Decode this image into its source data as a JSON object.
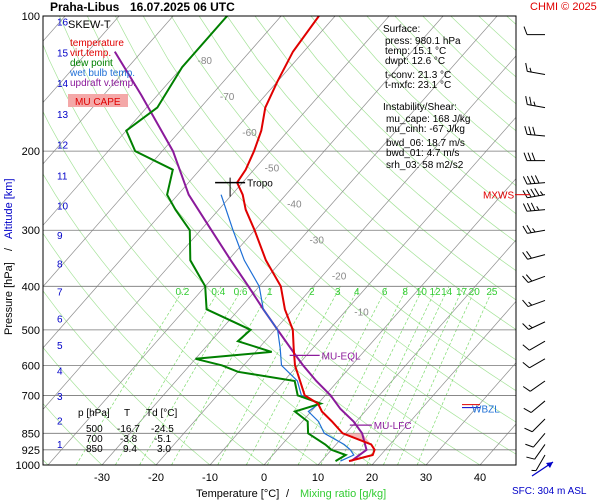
{
  "header": {
    "station": "Praha-Libus",
    "datetime": "16.07.2025 06 UTC",
    "credit": "CHMI © 2025"
  },
  "axes": {
    "xlabel_temp": "Temperature [°C]",
    "xlabel_sep": "/",
    "xlabel_mix": "Mixing ratio [g/kg]",
    "ylabel_pressure": "Pressure [hPa]",
    "ylabel_sep": "/",
    "ylabel_altitude": "Altitude [km]",
    "sfc_label": "SFC: 304 m ASL"
  },
  "legend": {
    "title": "SKEW-T",
    "items": [
      {
        "label": "temperature",
        "color": "#e00000"
      },
      {
        "label": "virt.temp.",
        "color": "#e00000"
      },
      {
        "label": "dew point",
        "color": "#008000"
      },
      {
        "label": "wet bulb temp.",
        "color": "#1e6fd6"
      },
      {
        "label": "updraft v.temp.",
        "color": "#8b1a9b"
      }
    ],
    "mu_cape_label": "MU CAPE"
  },
  "surface": {
    "title": "Surface:",
    "lines": [
      {
        "text": "press: 980.1 hPa",
        "color": "#000000"
      },
      {
        "text": "temp: 15.1 °C",
        "color": "#e00000"
      },
      {
        "text": "dwpt: 12.6 °C",
        "color": "#008000"
      },
      {
        "text": "t-conv: 21.3 °C",
        "color": "#000000"
      },
      {
        "text": "t-mxfc: 23.1 °C",
        "color": "#000000"
      }
    ]
  },
  "instability": {
    "title": "Instability/Shear:",
    "lines": [
      "mu_cape: 168 J/kg",
      "mu_cinh: -67 J/kg",
      "bwd_06: 18.7 m/s",
      "bwd_01: 4.7 m/s",
      "srh_03: 58 m2/s2"
    ]
  },
  "table": {
    "headers": [
      "p [hPa]",
      "T",
      "Td [°C]"
    ],
    "rows": [
      [
        "500",
        "-16.7",
        "-24.5"
      ],
      [
        "700",
        "-3.8",
        "-5.1"
      ],
      [
        "850",
        "9.4",
        "3.0"
      ]
    ]
  },
  "markers": {
    "tropo": "Tropo",
    "mxws": "MXWS",
    "mu_eql": "MU-EQL",
    "mu_lfc": "MU-LFC",
    "wbzl": "WBZL"
  },
  "colors": {
    "temperature": "#e00000",
    "dewpoint": "#008000",
    "wetbulb": "#1e6fd6",
    "parcel": "#8b1a9b",
    "mixing": "#7fdc6f",
    "isotherm": "#b4b4b4",
    "altitude": "#0000c8",
    "cape_fill": "#f4a8a8"
  },
  "chart_data": {
    "type": "skew-t",
    "x_ticks": [
      -30,
      -20,
      -10,
      0,
      10,
      20,
      30,
      40
    ],
    "pressure_ticks": [
      100,
      200,
      300,
      400,
      500,
      600,
      700,
      850,
      925,
      1000
    ],
    "altitude_ticks": [
      1,
      2,
      3,
      4,
      5,
      6,
      7,
      8,
      9,
      10,
      11,
      12,
      13,
      14,
      15,
      16
    ],
    "isotherm_labels": [
      -80,
      -70,
      -60,
      -50,
      -40,
      -30,
      -20,
      -10
    ],
    "mixing_ratio_labels": [
      "0.2",
      "0.4",
      "0.6",
      "1",
      "2",
      "3",
      "4",
      "6",
      "8",
      "10",
      "12",
      "14",
      "17",
      "20",
      "25"
    ],
    "temperature": [
      {
        "p": 980,
        "t": 15.1
      },
      {
        "p": 950,
        "t": 18.5
      },
      {
        "p": 925,
        "t": 18.0
      },
      {
        "p": 900,
        "t": 16.5
      },
      {
        "p": 850,
        "t": 9.4
      },
      {
        "p": 800,
        "t": 5.5
      },
      {
        "p": 760,
        "t": 2.0
      },
      {
        "p": 730,
        "t": 0.0
      },
      {
        "p": 700,
        "t": -3.8
      },
      {
        "p": 650,
        "t": -7.0
      },
      {
        "p": 600,
        "t": -10.5
      },
      {
        "p": 550,
        "t": -13.5
      },
      {
        "p": 500,
        "t": -16.7
      },
      {
        "p": 450,
        "t": -21.5
      },
      {
        "p": 400,
        "t": -26.0
      },
      {
        "p": 350,
        "t": -33.0
      },
      {
        "p": 300,
        "t": -40.0
      },
      {
        "p": 270,
        "t": -45.0
      },
      {
        "p": 250,
        "t": -48.0
      },
      {
        "p": 235,
        "t": -51.0
      },
      {
        "p": 220,
        "t": -51.5
      },
      {
        "p": 200,
        "t": -53.0
      },
      {
        "p": 180,
        "t": -55.0
      },
      {
        "p": 160,
        "t": -58.0
      },
      {
        "p": 140,
        "t": -60.0
      },
      {
        "p": 120,
        "t": -62.0
      },
      {
        "p": 100,
        "t": -63.0
      }
    ],
    "dewpoint": [
      {
        "p": 980,
        "t": 12.6
      },
      {
        "p": 950,
        "t": 13.5
      },
      {
        "p": 925,
        "t": 10.0
      },
      {
        "p": 900,
        "t": 8.0
      },
      {
        "p": 850,
        "t": 3.0
      },
      {
        "p": 800,
        "t": 1.0
      },
      {
        "p": 760,
        "t": -3.0
      },
      {
        "p": 730,
        "t": 0.5
      },
      {
        "p": 700,
        "t": -5.1
      },
      {
        "p": 650,
        "t": -8.0
      },
      {
        "p": 620,
        "t": -20.0
      },
      {
        "p": 600,
        "t": -24.0
      },
      {
        "p": 580,
        "t": -30.0
      },
      {
        "p": 560,
        "t": -17.0
      },
      {
        "p": 530,
        "t": -25.0
      },
      {
        "p": 500,
        "t": -24.5
      },
      {
        "p": 450,
        "t": -36.0
      },
      {
        "p": 400,
        "t": -40.0
      },
      {
        "p": 350,
        "t": -47.0
      },
      {
        "p": 300,
        "t": -52.0
      },
      {
        "p": 270,
        "t": -58.0
      },
      {
        "p": 250,
        "t": -62.0
      },
      {
        "p": 220,
        "t": -65.0
      },
      {
        "p": 200,
        "t": -75.0
      },
      {
        "p": 180,
        "t": -80.0
      },
      {
        "p": 160,
        "t": -78.0
      },
      {
        "p": 130,
        "t": -80.0
      },
      {
        "p": 100,
        "t": -80.0
      }
    ],
    "wetbulb": [
      {
        "p": 980,
        "t": 13.5
      },
      {
        "p": 950,
        "t": 15.0
      },
      {
        "p": 925,
        "t": 13.5
      },
      {
        "p": 900,
        "t": 11.5
      },
      {
        "p": 850,
        "t": 6.0
      },
      {
        "p": 800,
        "t": 3.0
      },
      {
        "p": 760,
        "t": -0.5
      },
      {
        "p": 730,
        "t": 0.2
      },
      {
        "p": 700,
        "t": -4.4
      },
      {
        "p": 650,
        "t": -7.5
      },
      {
        "p": 600,
        "t": -13.0
      },
      {
        "p": 550,
        "t": -16.0
      },
      {
        "p": 500,
        "t": -19.5
      },
      {
        "p": 450,
        "t": -25.5
      },
      {
        "p": 400,
        "t": -30.0
      },
      {
        "p": 350,
        "t": -37.0
      },
      {
        "p": 300,
        "t": -44.0
      },
      {
        "p": 250,
        "t": -52.0
      }
    ],
    "parcel": [
      {
        "p": 980,
        "t": 15.5
      },
      {
        "p": 925,
        "t": 16.5
      },
      {
        "p": 850,
        "t": 13.0
      },
      {
        "p": 800,
        "t": 9.5
      },
      {
        "p": 750,
        "t": 5.0
      },
      {
        "p": 700,
        "t": 1.0
      },
      {
        "p": 650,
        "t": -4.0
      },
      {
        "p": 600,
        "t": -9.0
      },
      {
        "p": 570,
        "t": -12.0
      },
      {
        "p": 500,
        "t": -19.5
      },
      {
        "p": 450,
        "t": -25.5
      },
      {
        "p": 400,
        "t": -32.0
      },
      {
        "p": 350,
        "t": -39.5
      },
      {
        "p": 300,
        "t": -48.0
      },
      {
        "p": 250,
        "t": -58.0
      },
      {
        "p": 200,
        "t": -68.0
      },
      {
        "p": 150,
        "t": -83.0
      },
      {
        "p": 120,
        "t": -95.0
      }
    ],
    "levels": {
      "tropopause_hpa": 235,
      "mxws_hpa": 250,
      "mu_eql_hpa": 570,
      "mu_lfc_hpa": 815,
      "wbzl_hpa": 745
    },
    "wind_barbs": [
      {
        "p": 110,
        "dir": 270,
        "spd_kt": 10
      },
      {
        "p": 135,
        "dir": 280,
        "spd_kt": 15
      },
      {
        "p": 160,
        "dir": 280,
        "spd_kt": 25
      },
      {
        "p": 185,
        "dir": 275,
        "spd_kt": 30
      },
      {
        "p": 210,
        "dir": 270,
        "spd_kt": 30
      },
      {
        "p": 235,
        "dir": 265,
        "spd_kt": 40
      },
      {
        "p": 250,
        "dir": 260,
        "spd_kt": 45
      },
      {
        "p": 270,
        "dir": 265,
        "spd_kt": 35
      },
      {
        "p": 300,
        "dir": 260,
        "spd_kt": 25
      },
      {
        "p": 340,
        "dir": 255,
        "spd_kt": 20
      },
      {
        "p": 380,
        "dir": 250,
        "spd_kt": 20
      },
      {
        "p": 430,
        "dir": 250,
        "spd_kt": 15
      },
      {
        "p": 480,
        "dir": 245,
        "spd_kt": 15
      },
      {
        "p": 530,
        "dir": 240,
        "spd_kt": 10
      },
      {
        "p": 580,
        "dir": 240,
        "spd_kt": 10
      },
      {
        "p": 650,
        "dir": 235,
        "spd_kt": 10
      },
      {
        "p": 720,
        "dir": 230,
        "spd_kt": 10
      },
      {
        "p": 790,
        "dir": 225,
        "spd_kt": 10
      },
      {
        "p": 850,
        "dir": 220,
        "spd_kt": 10
      },
      {
        "p": 900,
        "dir": 215,
        "spd_kt": 10
      },
      {
        "p": 950,
        "dir": 210,
        "spd_kt": 5
      }
    ]
  }
}
